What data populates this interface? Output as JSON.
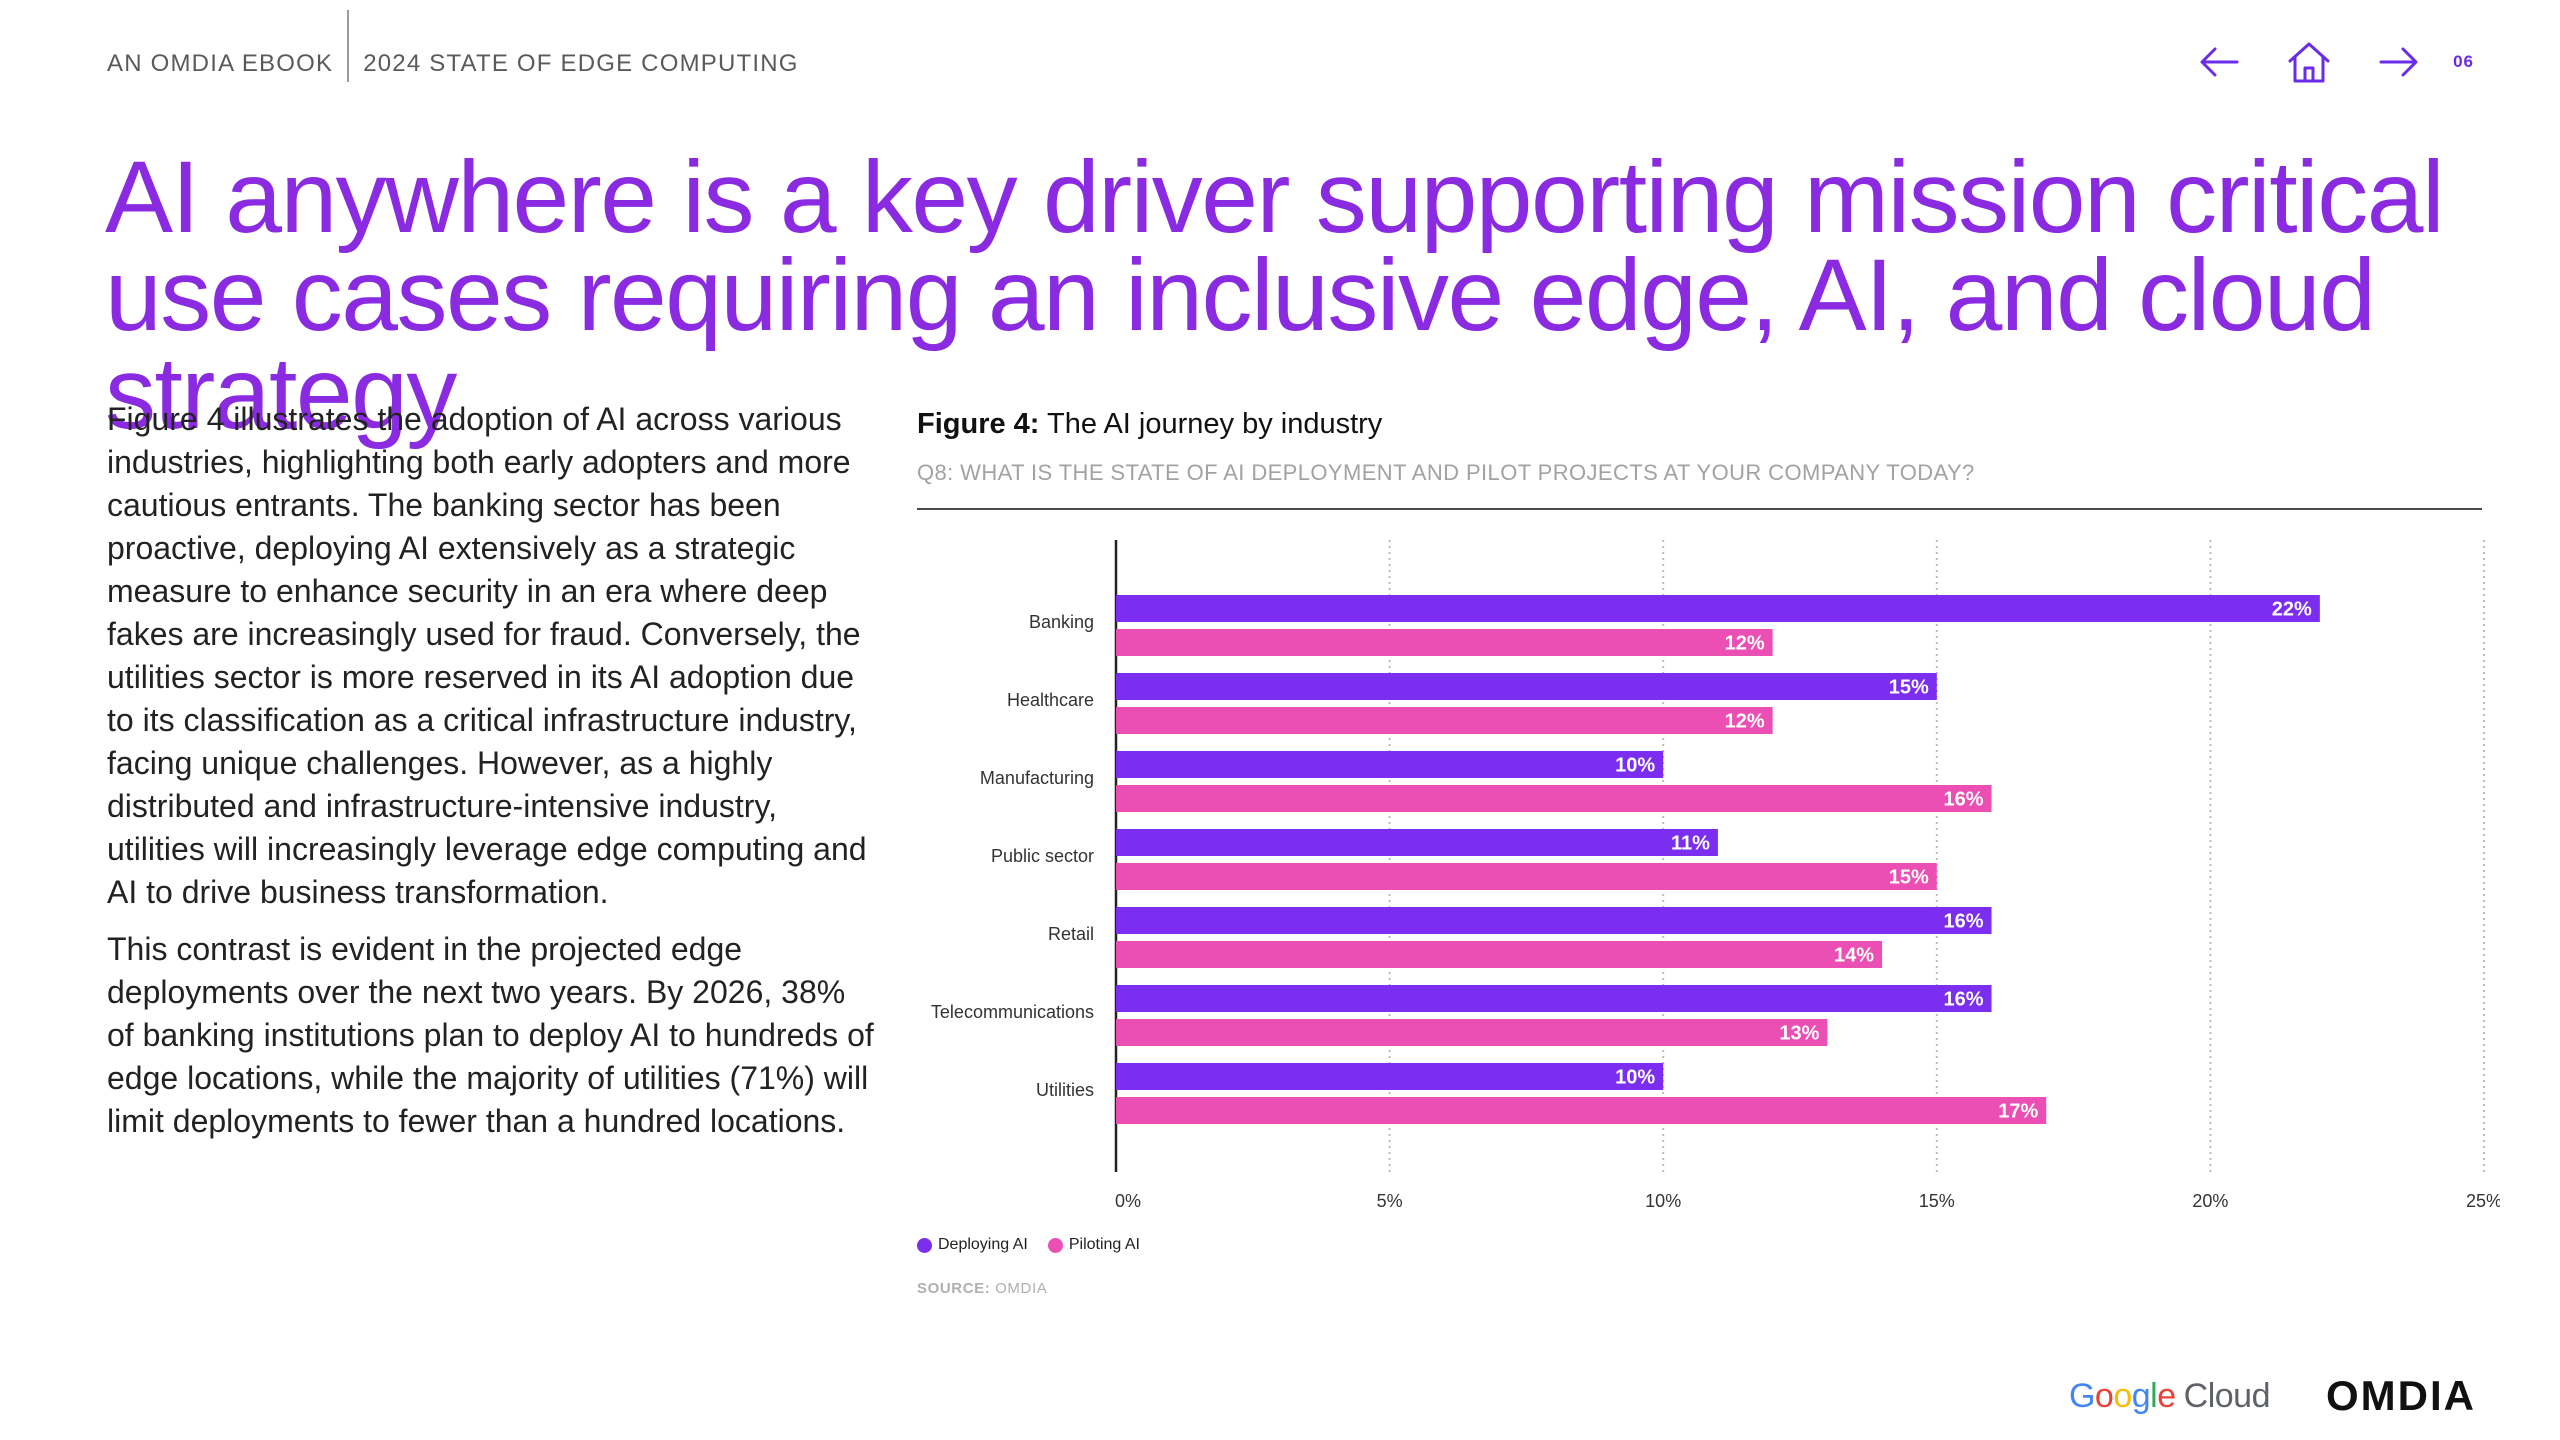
{
  "header": {
    "left_label": "AN OMDIA EBOOK",
    "right_label": "2024 STATE OF EDGE COMPUTING",
    "page_number": "06"
  },
  "headline": "AI anywhere is a key driver supporting mission critical use cases requiring an inclusive edge, AI, and cloud strategy",
  "body": {
    "p1": "Figure 4 illustrates the adoption of AI across various industries, highlighting both early adopters and more cautious entrants. The banking sector has been proactive, deploying AI extensively as a strategic measure to enhance security in an era where deep fakes are increasingly used for fraud. Conversely, the utilities sector is more reserved in its AI adoption due to its classification as a critical infrastructure industry, facing unique challenges. However, as a highly distributed and infrastructure-intensive industry, utilities will increasingly leverage edge computing and AI to drive business transformation.",
    "p2": "This contrast is evident in the projected edge deployments over the next two years. By 2026, 38% of banking institutions plan to deploy AI to hundreds of edge locations, while the majority of utilities (71%) will limit deployments to fewer than a hundred locations."
  },
  "figure": {
    "label": "Figure 4:",
    "title": "The AI journey by industry",
    "question": "Q8: WHAT IS THE STATE OF AI DEPLOYMENT AND PILOT PROJECTS AT YOUR COMPANY TODAY?",
    "source_label": "SOURCE:",
    "source_value": "OMDIA"
  },
  "chart_data": {
    "type": "bar",
    "orientation": "horizontal",
    "title": "The AI journey by industry",
    "categories": [
      "Banking",
      "Healthcare",
      "Manufacturing",
      "Public sector",
      "Retail",
      "Telecommunications",
      "Utilities"
    ],
    "series": [
      {
        "name": "Deploying AI",
        "color": "#7b2df0",
        "values": [
          22,
          15,
          10,
          11,
          16,
          16,
          10
        ]
      },
      {
        "name": "Piloting AI",
        "color": "#ec4fb4",
        "values": [
          12,
          12,
          16,
          15,
          14,
          13,
          17
        ]
      }
    ],
    "value_suffix": "%",
    "xlim": [
      0,
      25
    ],
    "xticks": [
      0,
      5,
      10,
      15,
      20,
      25
    ],
    "xtick_labels": [
      "0%",
      "5%",
      "10%",
      "15%",
      "20%",
      "25%"
    ],
    "grid": true,
    "legend_position": "bottom-left"
  },
  "footer": {
    "brand_google": "Google",
    "brand_cloud": "Cloud",
    "brand_omdia": "OMDIA"
  },
  "colors": {
    "accent": "#8a2be2",
    "deploying": "#7b2df0",
    "piloting": "#ec4fb4"
  }
}
